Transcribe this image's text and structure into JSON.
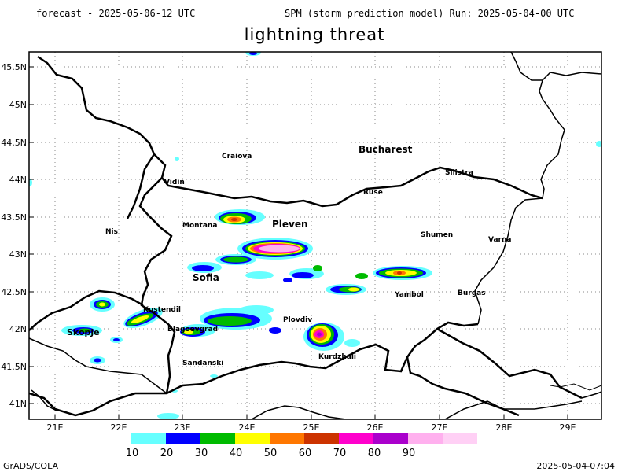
{
  "header": {
    "left": "forecast - 2025-05-06-12 UTC",
    "right": "SPM (storm prediction model) Run: 2025-05-04-00 UTC",
    "title": "lightning threat"
  },
  "axes": {
    "lat_labels": [
      "45.5N",
      "45N",
      "44.5N",
      "44N",
      "43.5N",
      "43N",
      "42.5N",
      "42N",
      "41.5N",
      "41N"
    ],
    "lon_labels": [
      "21E",
      "22E",
      "23E",
      "24E",
      "25E",
      "26E",
      "27E",
      "28E",
      "29E"
    ]
  },
  "cities": [
    {
      "id": "bucharest",
      "name": "Bucharest"
    },
    {
      "id": "craiova",
      "name": "Craiova"
    },
    {
      "id": "vidin",
      "name": "Vidin"
    },
    {
      "id": "silistra",
      "name": "Silistra"
    },
    {
      "id": "ruse",
      "name": "Ruse"
    },
    {
      "id": "montana",
      "name": "Montana"
    },
    {
      "id": "pleven",
      "name": "Pleven"
    },
    {
      "id": "nis",
      "name": "Nis"
    },
    {
      "id": "shumen",
      "name": "Shumen"
    },
    {
      "id": "varna",
      "name": "Varna"
    },
    {
      "id": "sofia",
      "name": "Sofia"
    },
    {
      "id": "yambol",
      "name": "Yambol"
    },
    {
      "id": "burgas",
      "name": "Burgas"
    },
    {
      "id": "kustendil",
      "name": "Kustendil"
    },
    {
      "id": "plovdiv",
      "name": "Plovdiv"
    },
    {
      "id": "skopje",
      "name": "Skopje"
    },
    {
      "id": "blagoevgrad",
      "name": "Blagoevgrad"
    },
    {
      "id": "kurdzhali",
      "name": "Kurdzhali"
    },
    {
      "id": "sandanski",
      "name": "Sandanski"
    }
  ],
  "legend": {
    "labels": [
      "10",
      "20",
      "30",
      "40",
      "50",
      "60",
      "70",
      "80",
      "90"
    ],
    "colors": [
      "#66ffff",
      "#0000ff",
      "#00bb00",
      "#ffff00",
      "#ff7700",
      "#cc3300",
      "#ff00cc",
      "#aa00cc",
      "#ffb0ee"
    ]
  },
  "footer": {
    "left": "GrADS/COLA",
    "right": "2025-05-04-07:04"
  }
}
